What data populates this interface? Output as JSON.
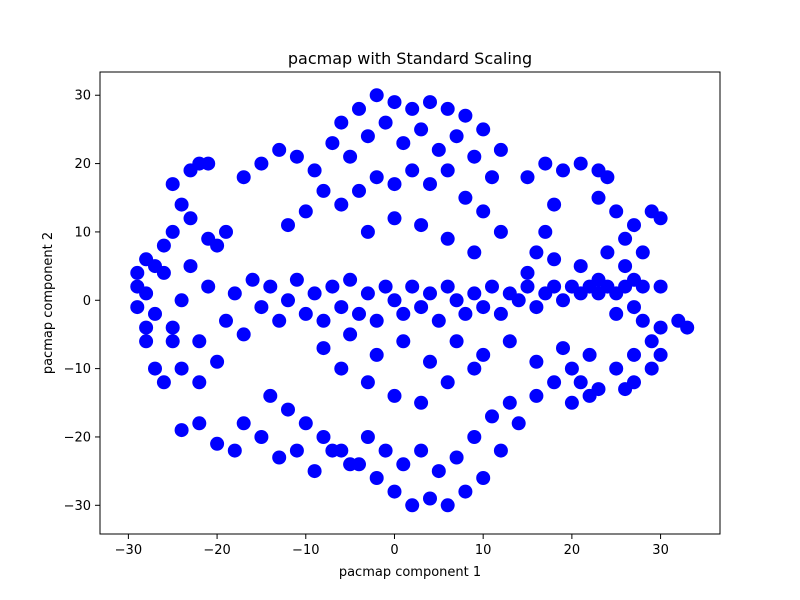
{
  "chart_data": {
    "type": "scatter",
    "title": "pacmap with Standard Scaling",
    "xlabel": "pacmap component 1",
    "ylabel": "pacmap component 2",
    "xlim": [
      -33.2,
      36.7
    ],
    "ylim": [
      -34.2,
      33.4
    ],
    "xticks": [
      -30,
      -20,
      -10,
      0,
      10,
      20,
      30
    ],
    "yticks": [
      -30,
      -20,
      -10,
      0,
      10,
      20,
      30
    ],
    "grid": false,
    "marker_color": "#0000ff",
    "series": [
      {
        "points": [
          [
            -29,
            2
          ],
          [
            -28,
            6
          ],
          [
            -27,
            -2
          ],
          [
            -28,
            -6
          ],
          [
            -26,
            4
          ],
          [
            -25,
            -4
          ],
          [
            -24,
            0
          ],
          [
            -23,
            5
          ],
          [
            -22,
            -6
          ],
          [
            -21,
            2
          ],
          [
            -20,
            8
          ],
          [
            -19,
            -3
          ],
          [
            -18,
            1
          ],
          [
            -17,
            -5
          ],
          [
            -16,
            3
          ],
          [
            -15,
            -1
          ],
          [
            -14,
            2
          ],
          [
            -13,
            -3
          ],
          [
            -12,
            0
          ],
          [
            -11,
            3
          ],
          [
            -10,
            -2
          ],
          [
            -9,
            1
          ],
          [
            -8,
            -3
          ],
          [
            -7,
            2
          ],
          [
            -6,
            -1
          ],
          [
            -5,
            3
          ],
          [
            -4,
            -2
          ],
          [
            -3,
            1
          ],
          [
            -2,
            -3
          ],
          [
            -1,
            2
          ],
          [
            0,
            0
          ],
          [
            1,
            -2
          ],
          [
            2,
            2
          ],
          [
            3,
            -1
          ],
          [
            4,
            1
          ],
          [
            5,
            -3
          ],
          [
            6,
            2
          ],
          [
            7,
            0
          ],
          [
            8,
            -2
          ],
          [
            9,
            1
          ],
          [
            10,
            -1
          ],
          [
            11,
            2
          ],
          [
            12,
            -2
          ],
          [
            13,
            1
          ],
          [
            14,
            0
          ],
          [
            15,
            2
          ],
          [
            16,
            -1
          ],
          [
            17,
            1
          ],
          [
            18,
            2
          ],
          [
            19,
            0
          ],
          [
            20,
            2
          ],
          [
            21,
            1
          ],
          [
            22,
            2
          ],
          [
            23,
            1
          ],
          [
            24,
            2
          ],
          [
            26,
            2
          ],
          [
            28,
            2
          ],
          [
            -25,
            10
          ],
          [
            -23,
            12
          ],
          [
            -21,
            9
          ],
          [
            -19,
            10
          ],
          [
            -24,
            -10
          ],
          [
            -22,
            -12
          ],
          [
            -20,
            -9
          ],
          [
            -25,
            -6
          ],
          [
            -27,
            -10
          ],
          [
            -26,
            -12
          ],
          [
            -22,
            -18
          ],
          [
            -20,
            -21
          ],
          [
            -18,
            -22
          ],
          [
            -17,
            -18
          ],
          [
            -24,
            -19
          ],
          [
            -24,
            14
          ],
          [
            -25,
            17
          ],
          [
            -23,
            19
          ],
          [
            -21,
            20
          ],
          [
            -22,
            20
          ],
          [
            -17,
            18
          ],
          [
            -15,
            20
          ],
          [
            -13,
            22
          ],
          [
            -11,
            21
          ],
          [
            -9,
            19
          ],
          [
            -7,
            23
          ],
          [
            -6,
            26
          ],
          [
            -4,
            28
          ],
          [
            -2,
            30
          ],
          [
            0,
            29
          ],
          [
            2,
            28
          ],
          [
            4,
            29
          ],
          [
            6,
            28
          ],
          [
            8,
            27
          ],
          [
            10,
            25
          ],
          [
            12,
            22
          ],
          [
            11,
            18
          ],
          [
            9,
            21
          ],
          [
            7,
            24
          ],
          [
            5,
            22
          ],
          [
            3,
            25
          ],
          [
            1,
            23
          ],
          [
            -1,
            26
          ],
          [
            -3,
            24
          ],
          [
            -5,
            21
          ],
          [
            -8,
            16
          ],
          [
            -10,
            13
          ],
          [
            -12,
            11
          ],
          [
            -6,
            14
          ],
          [
            -4,
            16
          ],
          [
            -2,
            18
          ],
          [
            0,
            17
          ],
          [
            2,
            19
          ],
          [
            4,
            17
          ],
          [
            6,
            19
          ],
          [
            8,
            15
          ],
          [
            10,
            13
          ],
          [
            12,
            10
          ],
          [
            -3,
            10
          ],
          [
            0,
            12
          ],
          [
            3,
            11
          ],
          [
            6,
            9
          ],
          [
            9,
            7
          ],
          [
            -14,
            -14
          ],
          [
            -12,
            -16
          ],
          [
            -10,
            -18
          ],
          [
            -8,
            -20
          ],
          [
            -6,
            -22
          ],
          [
            -4,
            -24
          ],
          [
            -2,
            -26
          ],
          [
            0,
            -28
          ],
          [
            2,
            -30
          ],
          [
            4,
            -29
          ],
          [
            6,
            -30
          ],
          [
            8,
            -28
          ],
          [
            10,
            -26
          ],
          [
            12,
            -22
          ],
          [
            14,
            -18
          ],
          [
            16,
            -14
          ],
          [
            18,
            -12
          ],
          [
            20,
            -10
          ],
          [
            22,
            -8
          ],
          [
            -15,
            -20
          ],
          [
            -13,
            -23
          ],
          [
            -11,
            -22
          ],
          [
            -9,
            -25
          ],
          [
            -7,
            -22
          ],
          [
            -5,
            -24
          ],
          [
            -3,
            -20
          ],
          [
            -1,
            -22
          ],
          [
            1,
            -24
          ],
          [
            3,
            -22
          ],
          [
            5,
            -25
          ],
          [
            7,
            -23
          ],
          [
            9,
            -20
          ],
          [
            11,
            -17
          ],
          [
            13,
            -15
          ],
          [
            -6,
            -10
          ],
          [
            -3,
            -12
          ],
          [
            0,
            -14
          ],
          [
            3,
            -15
          ],
          [
            6,
            -12
          ],
          [
            9,
            -10
          ],
          [
            -8,
            -7
          ],
          [
            -5,
            -5
          ],
          [
            -2,
            -8
          ],
          [
            1,
            -6
          ],
          [
            4,
            -9
          ],
          [
            7,
            -6
          ],
          [
            10,
            -8
          ],
          [
            13,
            -6
          ],
          [
            16,
            -9
          ],
          [
            19,
            -7
          ],
          [
            15,
            18
          ],
          [
            17,
            20
          ],
          [
            19,
            19
          ],
          [
            21,
            20
          ],
          [
            23,
            19
          ],
          [
            24,
            18
          ],
          [
            23,
            15
          ],
          [
            25,
            13
          ],
          [
            27,
            11
          ],
          [
            29,
            13
          ],
          [
            26,
            9
          ],
          [
            24,
            7
          ],
          [
            26,
            5
          ],
          [
            28,
            7
          ],
          [
            30,
            12
          ],
          [
            18,
            14
          ],
          [
            17,
            10
          ],
          [
            16,
            7
          ],
          [
            15,
            4
          ],
          [
            18,
            6
          ],
          [
            21,
            5
          ],
          [
            23,
            3
          ],
          [
            25,
            1
          ],
          [
            27,
            3
          ],
          [
            30,
            2
          ],
          [
            25,
            -2
          ],
          [
            27,
            -1
          ],
          [
            28,
            -3
          ],
          [
            30,
            -4
          ],
          [
            32,
            -3
          ],
          [
            33,
            -4
          ],
          [
            29,
            -6
          ],
          [
            27,
            -8
          ],
          [
            25,
            -10
          ],
          [
            27,
            -12
          ],
          [
            29,
            -10
          ],
          [
            30,
            -8
          ],
          [
            26,
            -13
          ],
          [
            23,
            -13
          ],
          [
            21,
            -12
          ],
          [
            20,
            -15
          ],
          [
            22,
            -14
          ],
          [
            -28,
            -4
          ],
          [
            -29,
            -1
          ],
          [
            -28,
            1
          ],
          [
            -27,
            5
          ],
          [
            -26,
            8
          ],
          [
            -29,
            4
          ]
        ]
      }
    ]
  }
}
